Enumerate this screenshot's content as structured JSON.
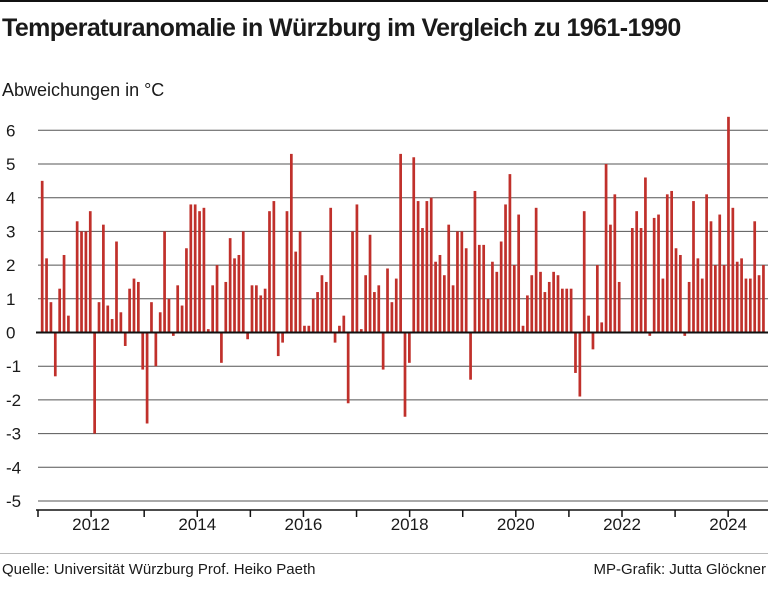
{
  "title": "Temperaturanomalie in Würzburg im Vergleich zu 1961-1990",
  "source": "Quelle: Universität Würzburg Prof. Heiko Paeth",
  "credit": "MP-Grafik: Jutta Glöckner",
  "colors": {
    "bar": "#c0302b",
    "grid": "#555555",
    "zero": "#111111",
    "text": "#1a1a1a"
  },
  "chart_data": {
    "type": "bar",
    "ylabel": "Abweichungen in °C",
    "xlabel": "",
    "ylim": [
      -5,
      6.5
    ],
    "yticks": [
      6,
      5,
      4,
      3,
      2,
      1,
      0,
      -1,
      -2,
      -3,
      -4,
      -5
    ],
    "ytick_labels": [
      "6",
      "5",
      "4",
      "3",
      "2",
      "1",
      "0",
      "-1",
      "-2",
      "-3",
      "-4",
      "-5"
    ],
    "xticks": [
      "2012",
      "2014",
      "2016",
      "2018",
      "2020",
      "2022",
      "2024"
    ],
    "xtick_positions": [
      2012,
      2014,
      2016,
      2018,
      2020,
      2022,
      2024
    ],
    "xlim": [
      2011.0,
      2024.75
    ],
    "grid": true,
    "frequency": "monthly",
    "start": "2011-01",
    "end": "2024-09",
    "values": [
      4.5,
      2.2,
      0.9,
      -1.3,
      1.3,
      2.3,
      0.5,
      0.0,
      3.3,
      3.0,
      3.0,
      3.6,
      -3.0,
      0.9,
      3.2,
      0.8,
      0.4,
      2.7,
      0.6,
      -0.4,
      1.3,
      1.6,
      1.5,
      -1.1,
      -2.7,
      0.9,
      -1.0,
      0.6,
      3.0,
      1.0,
      -0.1,
      1.4,
      0.8,
      2.5,
      3.8,
      3.8,
      3.6,
      3.7,
      0.1,
      1.4,
      2.0,
      -0.9,
      1.5,
      2.8,
      2.2,
      2.3,
      3.0,
      -0.2,
      1.4,
      1.4,
      1.1,
      1.3,
      3.6,
      3.9,
      -0.7,
      -0.3,
      3.6,
      5.3,
      2.4,
      3.0,
      0.2,
      0.2,
      1.0,
      1.2,
      1.7,
      1.5,
      3.7,
      -0.3,
      0.2,
      0.5,
      -2.1,
      3.0,
      3.8,
      0.1,
      1.7,
      2.9,
      1.2,
      1.4,
      -1.1,
      1.9,
      0.9,
      1.6,
      5.3,
      -2.5,
      -0.9,
      5.2,
      3.9,
      3.1,
      3.9,
      4.0,
      2.1,
      2.3,
      1.7,
      3.2,
      1.4,
      3.0,
      3.0,
      2.5,
      -1.4,
      4.2,
      2.6,
      2.6,
      1.0,
      2.1,
      1.8,
      2.7,
      3.8,
      4.7,
      2.0,
      3.5,
      0.2,
      1.1,
      1.7,
      3.7,
      1.8,
      1.2,
      1.5,
      1.8,
      1.7,
      1.3,
      1.3,
      1.3,
      -1.2,
      -1.9,
      3.6,
      0.5,
      -0.5,
      2.0,
      0.3,
      5.0,
      3.2,
      4.1,
      1.5,
      0.0,
      0.0,
      3.1,
      3.6,
      3.1,
      4.6,
      -0.1,
      3.4,
      3.5,
      1.6,
      4.1,
      4.2,
      2.5,
      2.3,
      -0.1,
      1.5,
      3.9,
      2.2,
      1.6,
      4.1,
      3.3,
      2.0,
      3.5,
      2.0,
      6.4,
      3.7,
      2.1,
      2.2,
      1.6,
      1.6,
      3.3,
      1.7,
      2.0
    ]
  }
}
